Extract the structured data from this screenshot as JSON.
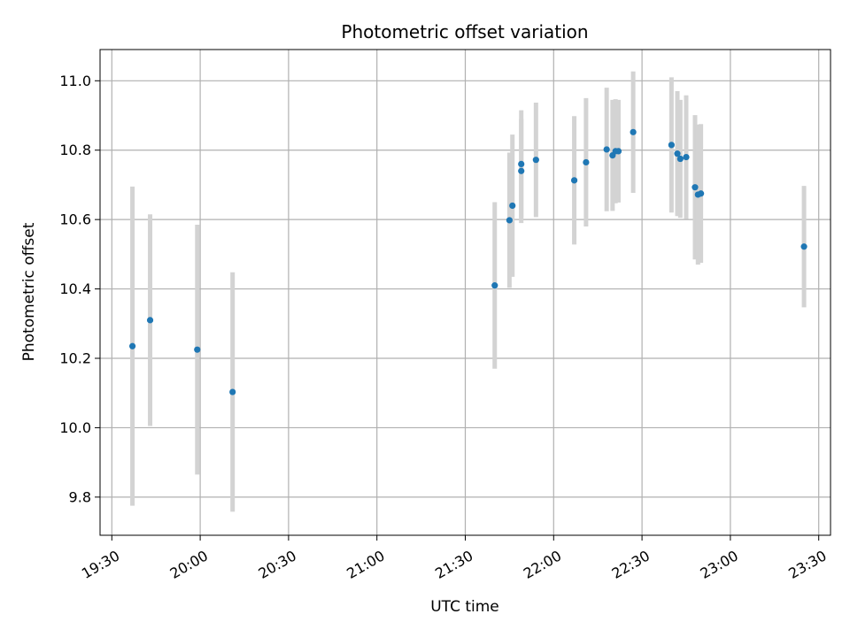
{
  "chart_data": {
    "type": "scatter",
    "title": "Photometric offset variation",
    "xlabel": "UTC time",
    "ylabel": "Photometric offset",
    "x_axis_type": "time",
    "xlim": [
      "19:26",
      "23:34"
    ],
    "ylim": [
      9.69,
      11.09
    ],
    "x_ticks": [
      "19:30",
      "20:00",
      "20:30",
      "21:00",
      "21:30",
      "22:00",
      "22:30",
      "23:00",
      "23:30"
    ],
    "y_ticks": [
      9.8,
      10.0,
      10.2,
      10.4,
      10.6,
      10.8,
      11.0
    ],
    "y_tick_labels": [
      "9.8",
      "10.0",
      "10.2",
      "10.4",
      "10.6",
      "10.8",
      "11.0"
    ],
    "grid": true,
    "point_color": "#1f77b4",
    "errorbar_color": "#d3d3d3",
    "points": [
      {
        "time": "19:37",
        "y": 10.235,
        "err": 0.46
      },
      {
        "time": "19:43",
        "y": 10.31,
        "err": 0.305
      },
      {
        "time": "19:59",
        "y": 10.225,
        "err": 0.36
      },
      {
        "time": "20:11",
        "y": 10.103,
        "err": 0.345
      },
      {
        "time": "21:40",
        "y": 10.41,
        "err": 0.24
      },
      {
        "time": "21:45",
        "y": 10.598,
        "err": 0.195
      },
      {
        "time": "21:46",
        "y": 10.64,
        "err": 0.205
      },
      {
        "time": "21:49",
        "y": 10.74,
        "err": 0.15
      },
      {
        "time": "21:49",
        "y": 10.76,
        "err": 0.155
      },
      {
        "time": "21:54",
        "y": 10.772,
        "err": 0.165
      },
      {
        "time": "22:07",
        "y": 10.713,
        "err": 0.185
      },
      {
        "time": "22:11",
        "y": 10.765,
        "err": 0.185
      },
      {
        "time": "22:18",
        "y": 10.802,
        "err": 0.178
      },
      {
        "time": "22:20",
        "y": 10.785,
        "err": 0.16
      },
      {
        "time": "22:21",
        "y": 10.797,
        "err": 0.15
      },
      {
        "time": "22:22",
        "y": 10.797,
        "err": 0.148
      },
      {
        "time": "22:27",
        "y": 10.852,
        "err": 0.175
      },
      {
        "time": "22:40",
        "y": 10.815,
        "err": 0.195
      },
      {
        "time": "22:42",
        "y": 10.79,
        "err": 0.18
      },
      {
        "time": "22:43",
        "y": 10.775,
        "err": 0.17
      },
      {
        "time": "22:45",
        "y": 10.78,
        "err": 0.178
      },
      {
        "time": "22:48",
        "y": 10.693,
        "err": 0.208
      },
      {
        "time": "22:49",
        "y": 10.672,
        "err": 0.202
      },
      {
        "time": "22:50",
        "y": 10.675,
        "err": 0.2
      },
      {
        "time": "23:25",
        "y": 10.522,
        "err": 0.175
      }
    ]
  }
}
